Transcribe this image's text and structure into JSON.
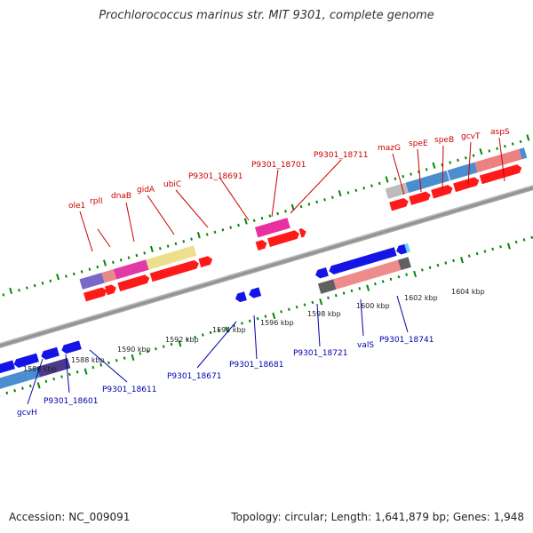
{
  "title": "Prochlorococcus marinus str. MIT 9301, complete genome",
  "footer": {
    "accession": "Accession: NC_009091",
    "summary": "Topology: circular; Length: 1,641,879 bp; Genes: 1,948"
  },
  "kbp_labels": [
    "1586 kbp",
    "1588 kbp",
    "1590 kbp",
    "1592 kbp",
    "1594 kbp",
    "1596 kbp",
    "1598 kbp",
    "1600 kbp",
    "1602 kbp",
    "1604 kbp"
  ],
  "top_strand_genes": [
    "ole1",
    "rplI",
    "dnaB",
    "gidA",
    "ubiC",
    "P9301_18691",
    "P9301_18701",
    "P9301_18711",
    "mazG",
    "speE",
    "speB",
    "gcvT",
    "aspS"
  ],
  "bottom_strand_genes": [
    "gcvH",
    "P9301_18601",
    "P9301_18611",
    "P9301_18671",
    "P9301_18681",
    "P9301_18721",
    "valS",
    "P9301_18741"
  ],
  "colors": {
    "top_label": "#cc0000",
    "bottom_label": "#0000aa",
    "forward_cds": "#ff0000",
    "reverse_cds": "#0000ee",
    "tick_green": "#008800",
    "backbone": "#888888"
  }
}
